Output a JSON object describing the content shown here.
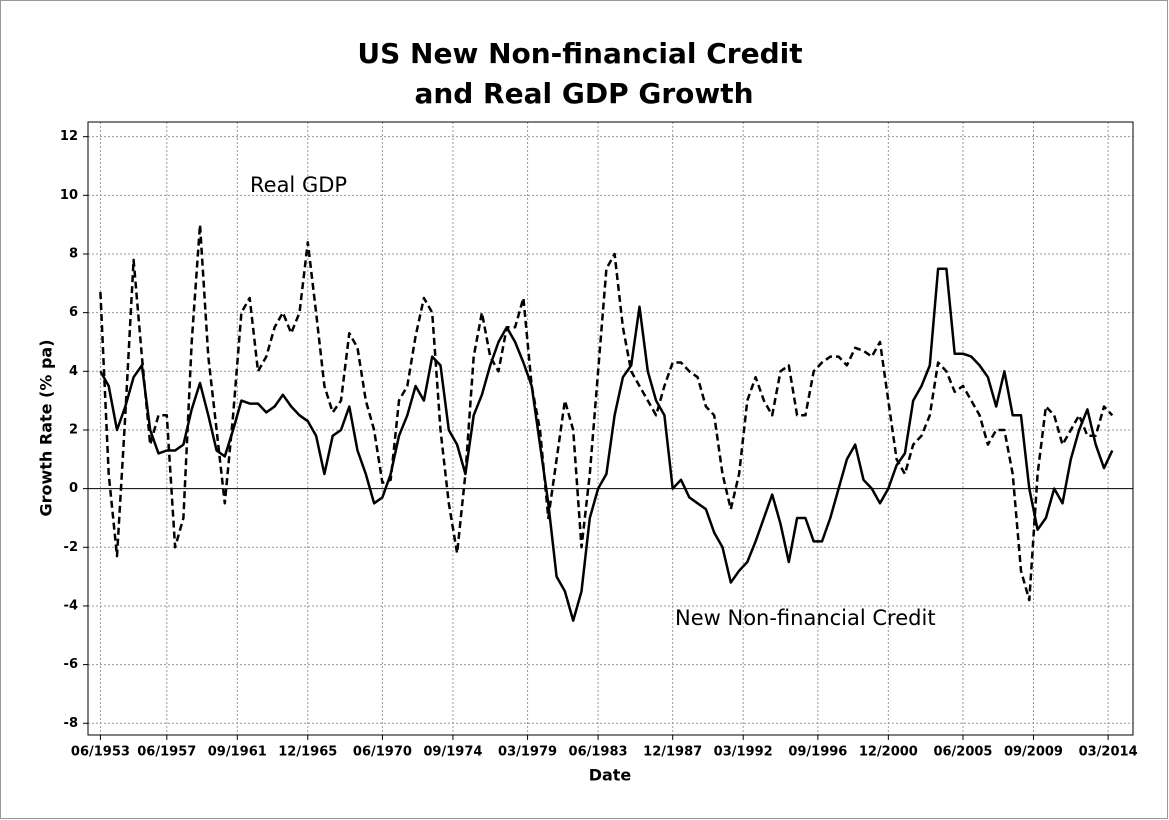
{
  "chart_data": {
    "type": "line",
    "title": [
      "US New Non-financial Credit",
      "and Real GDP Growth"
    ],
    "x_label": "Date",
    "y_label": "Growth Rate (% pa)",
    "annotations": [
      "Real GDP",
      "New Non-financial Credit"
    ],
    "x": [
      "06/1953",
      "12/1953",
      "06/1954",
      "12/1954",
      "06/1955",
      "12/1955",
      "06/1956",
      "12/1956",
      "06/1957",
      "12/1957",
      "06/1958",
      "12/1958",
      "06/1959",
      "12/1959",
      "06/1960",
      "12/1960",
      "06/1961",
      "12/1961",
      "06/1962",
      "12/1962",
      "06/1963",
      "12/1963",
      "06/1964",
      "12/1964",
      "06/1965",
      "12/1965",
      "06/1966",
      "12/1966",
      "06/1967",
      "12/1967",
      "06/1968",
      "12/1968",
      "06/1969",
      "12/1969",
      "06/1970",
      "12/1970",
      "06/1971",
      "12/1971",
      "06/1972",
      "12/1972",
      "06/1973",
      "12/1973",
      "06/1974",
      "12/1974",
      "06/1975",
      "12/1975",
      "06/1976",
      "12/1976",
      "06/1977",
      "12/1977",
      "06/1978",
      "12/1978",
      "06/1979",
      "12/1979",
      "06/1980",
      "12/1980",
      "06/1981",
      "12/1981",
      "06/1982",
      "12/1982",
      "06/1983",
      "12/1983",
      "06/1984",
      "12/1984",
      "06/1985",
      "12/1985",
      "06/1986",
      "12/1986",
      "06/1987",
      "12/1987",
      "06/1988",
      "12/1988",
      "06/1989",
      "12/1989",
      "06/1990",
      "12/1990",
      "06/1991",
      "12/1991",
      "06/1992",
      "12/1992",
      "06/1993",
      "12/1993",
      "06/1994",
      "12/1994",
      "06/1995",
      "12/1995",
      "06/1996",
      "12/1996",
      "06/1997",
      "12/1997",
      "06/1998",
      "12/1998",
      "06/1999",
      "12/1999",
      "06/2000",
      "12/2000",
      "06/2001",
      "12/2001",
      "06/2002",
      "12/2002",
      "06/2003",
      "12/2003",
      "06/2004",
      "12/2004",
      "06/2005",
      "12/2005",
      "06/2006",
      "12/2006",
      "06/2007",
      "12/2007",
      "06/2008",
      "12/2008",
      "06/2009",
      "12/2009",
      "06/2010",
      "12/2010",
      "06/2011",
      "12/2011",
      "06/2012",
      "12/2012",
      "06/2013",
      "12/2013",
      "06/2014"
    ],
    "series": [
      {
        "name": "Real GDP",
        "color": "#000000",
        "line_style": "dashed",
        "values": [
          6.7,
          0.5,
          -2.3,
          2.5,
          7.8,
          4.5,
          1.5,
          2.5,
          2.5,
          -2.0,
          -1.0,
          5.0,
          9.0,
          4.5,
          2.0,
          -0.5,
          2.5,
          6.0,
          6.5,
          4.0,
          4.5,
          5.5,
          6.0,
          5.3,
          6.0,
          8.4,
          6.0,
          3.5,
          2.6,
          3.0,
          5.3,
          4.8,
          3.0,
          2.0,
          0.2,
          0.3,
          3.0,
          3.5,
          5.2,
          6.5,
          6.0,
          2.0,
          -0.5,
          -2.2,
          0.5,
          4.5,
          6.0,
          4.5,
          4.0,
          5.5,
          5.5,
          6.5,
          3.5,
          2.0,
          -1.0,
          1.0,
          3.0,
          2.0,
          -2.0,
          0.5,
          4.0,
          7.5,
          8.0,
          5.5,
          4.0,
          3.5,
          3.0,
          2.5,
          3.5,
          4.3,
          4.3,
          4.0,
          3.8,
          2.8,
          2.5,
          0.5,
          -0.7,
          0.5,
          3.0,
          3.8,
          3.0,
          2.5,
          4.0,
          4.2,
          2.5,
          2.5,
          4.0,
          4.3,
          4.5,
          4.5,
          4.2,
          4.8,
          4.7,
          4.5,
          5.0,
          3.0,
          1.0,
          0.5,
          1.5,
          1.8,
          2.5,
          4.3,
          4.0,
          3.3,
          3.5,
          3.0,
          2.5,
          1.5,
          2.0,
          2.0,
          0.5,
          -2.8,
          -3.8,
          0.5,
          2.8,
          2.5,
          1.5,
          2.0,
          2.5,
          1.8,
          1.8,
          2.8,
          2.5
        ]
      },
      {
        "name": "New Non-financial Credit",
        "color": "#000000",
        "line_style": "solid",
        "values": [
          4.0,
          3.5,
          2.0,
          2.8,
          3.8,
          4.2,
          2.0,
          1.2,
          1.3,
          1.3,
          1.5,
          2.7,
          3.6,
          2.5,
          1.3,
          1.1,
          2.0,
          3.0,
          2.9,
          2.9,
          2.6,
          2.8,
          3.2,
          2.8,
          2.5,
          2.3,
          1.8,
          0.5,
          1.8,
          2.0,
          2.8,
          1.3,
          0.5,
          -0.5,
          -0.3,
          0.5,
          1.8,
          2.5,
          3.5,
          3.0,
          4.5,
          4.2,
          2.0,
          1.5,
          0.5,
          2.5,
          3.2,
          4.2,
          5.0,
          5.5,
          5.0,
          4.3,
          3.5,
          1.5,
          -0.5,
          -3.0,
          -3.5,
          -4.5,
          -3.5,
          -1.0,
          0.0,
          0.5,
          2.5,
          3.8,
          4.2,
          6.2,
          4.0,
          3.0,
          2.5,
          0.0,
          0.3,
          -0.3,
          -0.5,
          -0.7,
          -1.5,
          -2.0,
          -3.2,
          -2.8,
          -2.5,
          -1.8,
          -1.0,
          -0.2,
          -1.2,
          -2.5,
          -1.0,
          -1.0,
          -1.8,
          -1.8,
          -1.0,
          0.0,
          1.0,
          1.5,
          0.3,
          0.0,
          -0.5,
          0.0,
          0.8,
          1.2,
          3.0,
          3.5,
          4.2,
          7.5,
          7.5,
          4.6,
          4.6,
          4.5,
          4.2,
          3.8,
          2.8,
          4.0,
          2.5,
          2.5,
          0.0,
          -1.4,
          -1.0,
          0.0,
          -0.5,
          1.0,
          2.0,
          2.7,
          1.5,
          0.7,
          1.3
        ]
      }
    ],
    "xlim": [
      "09/1952",
      "09/2015"
    ],
    "xticks": [
      "06/1953",
      "06/1957",
      "09/1961",
      "12/1965",
      "06/1970",
      "09/1974",
      "03/1979",
      "06/1983",
      "12/1987",
      "03/1992",
      "09/1996",
      "12/2000",
      "06/2005",
      "09/2009",
      "03/2014"
    ],
    "ylim": [
      -8.4,
      12.5
    ],
    "yticks": [
      -8,
      -6,
      -4,
      -2,
      0,
      2,
      4,
      6,
      8,
      10,
      12
    ],
    "grid": true
  }
}
